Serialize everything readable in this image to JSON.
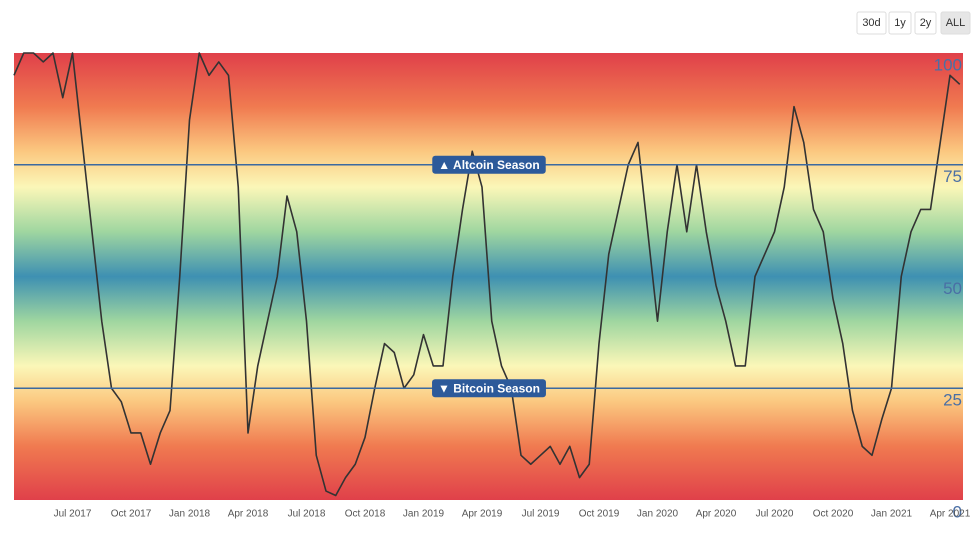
{
  "range_buttons": [
    "30d",
    "1y",
    "2y",
    "ALL"
  ],
  "chart_data": {
    "type": "line",
    "color": "#333333",
    "grid": false,
    "ylim": [
      0,
      100
    ],
    "yticks": [
      0,
      25,
      50,
      75,
      100
    ],
    "plot_lines": [
      {
        "value": 75,
        "label": "▲ Altcoin Season"
      },
      {
        "value": 25,
        "label": "▼ Bitcoin Season"
      }
    ],
    "categories": [
      null,
      null,
      null,
      null,
      null,
      null,
      "Jul 2017",
      null,
      null,
      null,
      null,
      null,
      "Oct 2017",
      null,
      null,
      null,
      null,
      null,
      "Jan 2018",
      null,
      null,
      null,
      null,
      null,
      "Apr 2018",
      null,
      null,
      null,
      null,
      null,
      "Jul 2018",
      null,
      null,
      null,
      null,
      null,
      "Oct 2018",
      null,
      null,
      null,
      null,
      null,
      "Jan 2019",
      null,
      null,
      null,
      null,
      null,
      "Apr 2019",
      null,
      null,
      null,
      null,
      null,
      "Jul 2019",
      null,
      null,
      null,
      null,
      null,
      "Oct 2019",
      null,
      null,
      null,
      null,
      null,
      "Jan 2020",
      null,
      null,
      null,
      null,
      null,
      "Apr 2020",
      null,
      null,
      null,
      null,
      null,
      "Jul 2020",
      null,
      null,
      null,
      null,
      null,
      "Oct 2020",
      null,
      null,
      null,
      null,
      null,
      "Jan 2021",
      null,
      null,
      null,
      null,
      null,
      "Apr 2021",
      null
    ],
    "values": [
      95,
      100,
      100,
      98,
      100,
      90,
      100,
      80,
      60,
      40,
      25,
      22,
      15,
      15,
      8,
      15,
      20,
      50,
      85,
      100,
      95,
      98,
      95,
      70,
      15,
      30,
      40,
      50,
      68,
      60,
      40,
      10,
      2,
      1,
      5,
      8,
      14,
      25,
      35,
      33,
      25,
      28,
      37,
      30,
      30,
      50,
      65,
      78,
      70,
      40,
      30,
      25,
      10,
      8,
      10,
      12,
      8,
      12,
      5,
      8,
      35,
      55,
      65,
      75,
      80,
      60,
      40,
      60,
      75,
      60,
      75,
      60,
      48,
      40,
      30,
      30,
      50,
      55,
      60,
      70,
      88,
      80,
      65,
      60,
      45,
      35,
      20,
      12,
      10,
      18,
      25,
      50,
      60,
      65,
      65,
      80,
      95,
      93
    ]
  }
}
